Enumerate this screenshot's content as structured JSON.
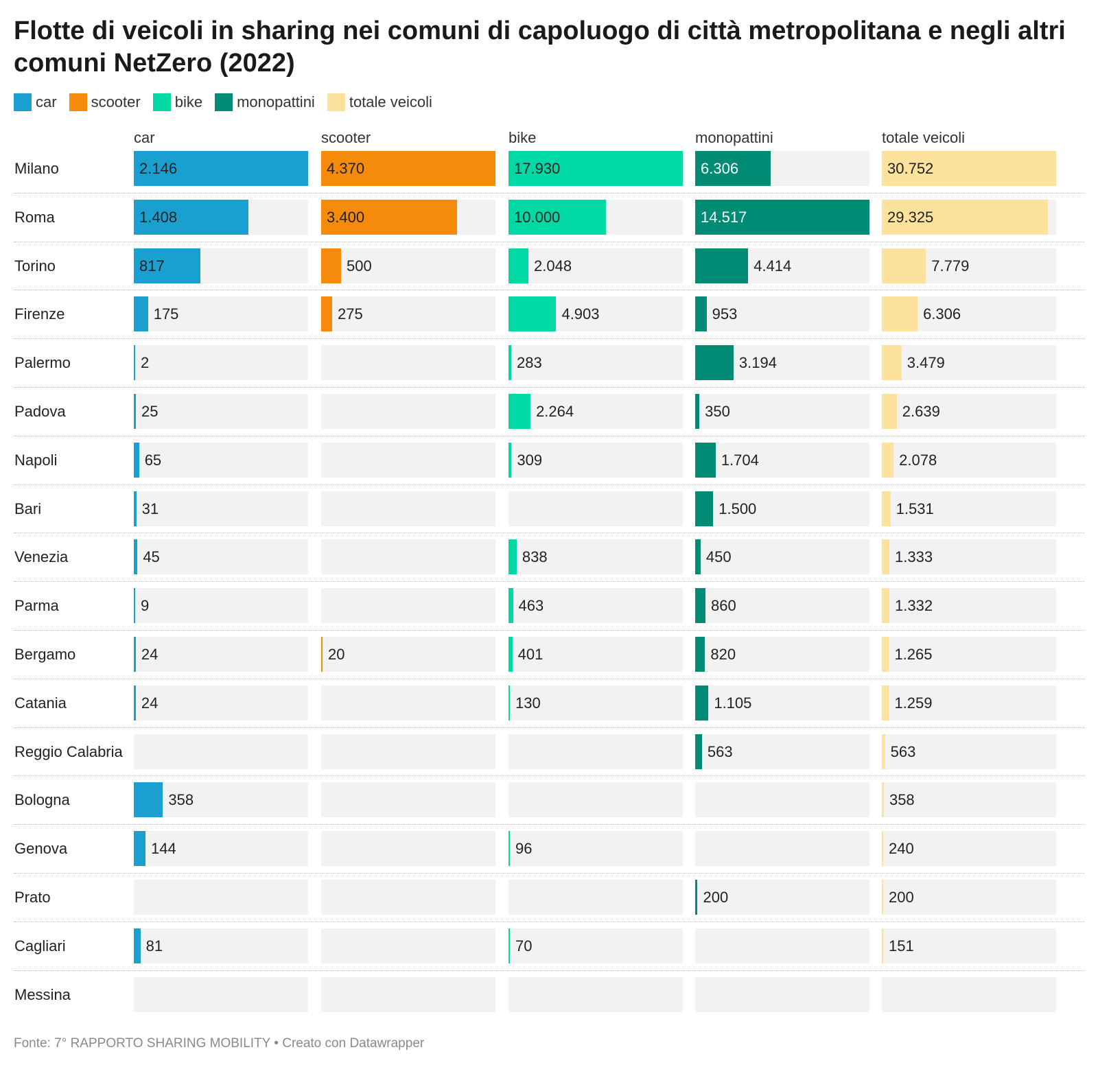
{
  "title": "Flotte di veicoli in sharing nei comuni di capoluogo di città metropolitana e negli altri comuni NetZero (2022)",
  "footer": {
    "source": "Fonte: 7° RAPPORTO SHARING MOBILITY",
    "separator": "•",
    "credit": "Creato con Datawrapper"
  },
  "colors": {
    "car": "#1aa0d0",
    "scooter": "#f58a0b",
    "bike": "#00d9a3",
    "monopattini": "#008c74",
    "totale": "#fde29d",
    "cell_background": "#f2f2f2"
  },
  "chart_data": {
    "type": "table",
    "title": "Flotte di veicoli in sharing nei comuni di capoluogo di città metropolitana e negli altri comuni NetZero (2022)",
    "legend": [
      "car",
      "scooter",
      "bike",
      "monopattini",
      "totale veicoli"
    ],
    "columns": [
      {
        "key": "car",
        "label": "car",
        "max": 2146
      },
      {
        "key": "scooter",
        "label": "scooter",
        "max": 4370
      },
      {
        "key": "bike",
        "label": "bike",
        "max": 17930
      },
      {
        "key": "monopattini",
        "label": "monopattini",
        "max": 14517
      },
      {
        "key": "totale",
        "label": "totale veicoli",
        "max": 30752
      }
    ],
    "rows": [
      {
        "city": "Milano",
        "car": "2.146",
        "scooter": "4.370",
        "bike": "17.930",
        "monopattini": "6.306",
        "totale": "30.752"
      },
      {
        "city": "Roma",
        "car": "1.408",
        "scooter": "3.400",
        "bike": "10.000",
        "monopattini": "14.517",
        "totale": "29.325"
      },
      {
        "city": "Torino",
        "car": "817",
        "scooter": "500",
        "bike": "2.048",
        "monopattini": "4.414",
        "totale": "7.779"
      },
      {
        "city": "Firenze",
        "car": "175",
        "scooter": "275",
        "bike": "4.903",
        "monopattini": "953",
        "totale": "6.306"
      },
      {
        "city": "Palermo",
        "car": "2",
        "scooter": "",
        "bike": "283",
        "monopattini": "3.194",
        "totale": "3.479"
      },
      {
        "city": "Padova",
        "car": "25",
        "scooter": "",
        "bike": "2.264",
        "monopattini": "350",
        "totale": "2.639"
      },
      {
        "city": "Napoli",
        "car": "65",
        "scooter": "",
        "bike": "309",
        "monopattini": "1.704",
        "totale": "2.078"
      },
      {
        "city": "Bari",
        "car": "31",
        "scooter": "",
        "bike": "",
        "monopattini": "1.500",
        "totale": "1.531"
      },
      {
        "city": "Venezia",
        "car": "45",
        "scooter": "",
        "bike": "838",
        "monopattini": "450",
        "totale": "1.333"
      },
      {
        "city": "Parma",
        "car": "9",
        "scooter": "",
        "bike": "463",
        "monopattini": "860",
        "totale": "1.332"
      },
      {
        "city": "Bergamo",
        "car": "24",
        "scooter": "20",
        "bike": "401",
        "monopattini": "820",
        "totale": "1.265"
      },
      {
        "city": "Catania",
        "car": "24",
        "scooter": "",
        "bike": "130",
        "monopattini": "1.105",
        "totale": "1.259"
      },
      {
        "city": "Reggio Calabria",
        "car": "",
        "scooter": "",
        "bike": "",
        "monopattini": "563",
        "totale": "563"
      },
      {
        "city": "Bologna",
        "car": "358",
        "scooter": "",
        "bike": "",
        "monopattini": "",
        "totale": "358"
      },
      {
        "city": "Genova",
        "car": "144",
        "scooter": "",
        "bike": "96",
        "monopattini": "",
        "totale": "240"
      },
      {
        "city": "Prato",
        "car": "",
        "scooter": "",
        "bike": "",
        "monopattini": "200",
        "totale": "200"
      },
      {
        "city": "Cagliari",
        "car": "81",
        "scooter": "",
        "bike": "70",
        "monopattini": "",
        "totale": "151"
      },
      {
        "city": "Messina",
        "car": "",
        "scooter": "",
        "bike": "",
        "monopattini": "",
        "totale": ""
      }
    ]
  }
}
